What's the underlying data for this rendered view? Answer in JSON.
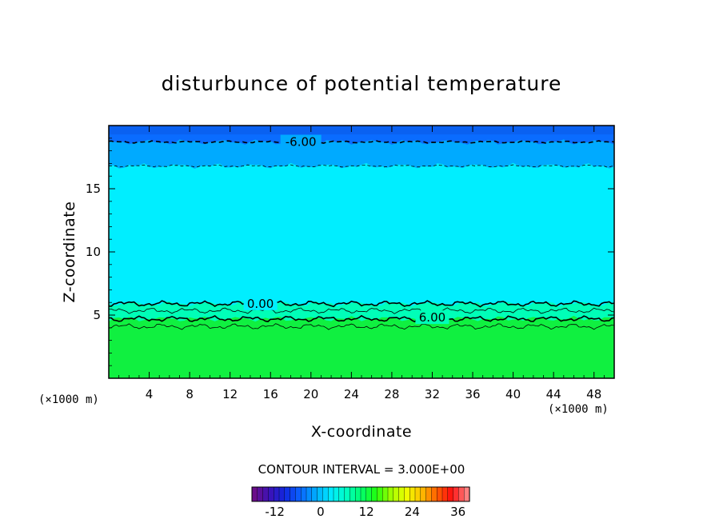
{
  "chart_data": {
    "type": "heatmap",
    "title": "disturbunce of potential temperature",
    "xlabel": "X-coordinate",
    "ylabel": "Z-coordinate",
    "x_unit": "(×1000 m)",
    "xlim": [
      0,
      50
    ],
    "ylim": [
      0,
      20
    ],
    "x_ticks": [
      4,
      8,
      12,
      16,
      20,
      24,
      28,
      32,
      36,
      40,
      44,
      48
    ],
    "y_ticks": [
      5,
      10,
      15
    ],
    "contour_interval_label": "CONTOUR INTERVAL = 3.000E+00",
    "contour_labels": [
      {
        "text": "-6.00",
        "x": 19,
        "z": 18.7
      },
      {
        "text": "0.00",
        "x": 15,
        "z": 5.9
      },
      {
        "text": "6.00",
        "x": 32,
        "z": 4.8
      }
    ],
    "contours": [
      {
        "level": -6,
        "z": 18.7,
        "style": "dashed",
        "weight": "heavy"
      },
      {
        "level": -3,
        "z": 16.8,
        "style": "dashed",
        "weight": "thin"
      },
      {
        "level": 0,
        "z": 5.9,
        "style": "solid",
        "weight": "heavy"
      },
      {
        "level": 3,
        "z": 5.35,
        "style": "solid",
        "weight": "thin"
      },
      {
        "level": 6,
        "z": 4.7,
        "style": "solid",
        "weight": "heavy"
      },
      {
        "level": 9,
        "z": 4.1,
        "style": "solid",
        "weight": "thin"
      }
    ],
    "colorbar": {
      "ticks": [
        "-12",
        "0",
        "12",
        "24",
        "36"
      ],
      "tick_values": [
        -12,
        0,
        12,
        24,
        36
      ],
      "range": [
        -18,
        39
      ],
      "colors": [
        "#6a0d8a",
        "#3a12b8",
        "#1028e0",
        "#0a64ff",
        "#00a8ff",
        "#00e8ff",
        "#00ffc8",
        "#00ff70",
        "#20ff10",
        "#a0ff00",
        "#f0ff00",
        "#ffc000",
        "#ff6000",
        "#ff1010",
        "#ff8080"
      ]
    },
    "colors": {
      "top": "#0a6cff",
      "upper": "#00aaff",
      "middle": "#00eeff",
      "lower_band": "#00ffb8",
      "bottom": "#10f040"
    }
  }
}
